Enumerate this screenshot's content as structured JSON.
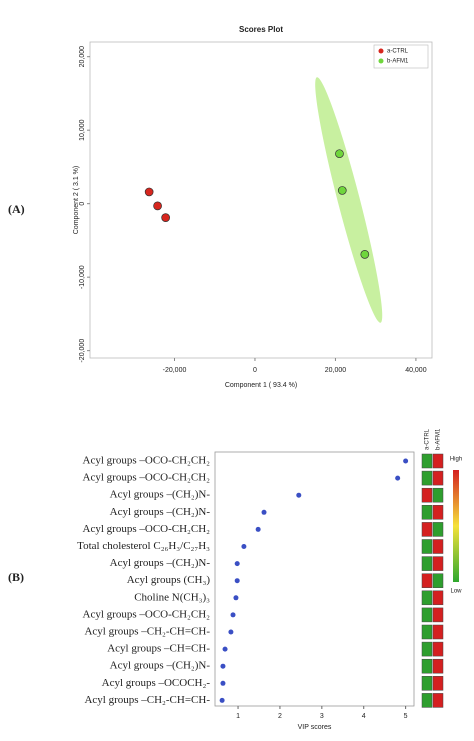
{
  "chart_data": [
    {
      "type": "scatter",
      "panel_label": "(A)",
      "title": "Scores Plot",
      "x_label": "Component 1 ( 93.4 %)",
      "y_label": "Component 2 ( 3.1 %)",
      "xlim": [
        -41000,
        44000
      ],
      "ylim": [
        -21000,
        22000
      ],
      "xticks": [
        {
          "value": -20000,
          "label": "-20,000"
        },
        0,
        {
          "value": 20000,
          "label": "20,000"
        },
        {
          "value": 40000,
          "label": "40,000"
        }
      ],
      "yticks": [
        {
          "value": -20000,
          "label": "-20,000"
        },
        {
          "value": -10000,
          "label": "-10,000"
        },
        0,
        {
          "value": 10000,
          "label": "10,000"
        },
        {
          "value": 20000,
          "label": "20,000"
        }
      ],
      "legend": "top-right",
      "series": [
        {
          "name": "a-CTRL",
          "color": "#d7261e",
          "x": [
            -26300,
            -24200,
            -22200
          ],
          "values": [
            1600,
            -300,
            -1900
          ]
        },
        {
          "name": "b-AFM1",
          "color": "#6fd63c",
          "x": [
            21000,
            21700,
            27300
          ],
          "values": [
            6800,
            1800,
            -6900
          ],
          "ellipse_axis": [
            [
              15400,
              17200
            ],
            [
              31200,
              -16200
            ]
          ],
          "ellipse_color": "#c8f0a0"
        }
      ]
    },
    {
      "type": "dot",
      "panel_label": "(B)",
      "x_label": "VIP scores",
      "xlim": [
        0.45,
        5.2
      ],
      "xticks": [
        1,
        2,
        3,
        4,
        5
      ],
      "color": "#3a4fc4",
      "categories": [
        "Acyl groups –OCO-CH₂CH₂",
        "Acyl groups –OCO-CH₂CH₂",
        "Acyl groups –(CH₂)N-",
        "Acyl groups –(CH₂)N-",
        "Acyl groups –OCO-CH₂CH₂",
        "Total cholesterol C₂₆H₃/C₂₇H₃",
        "Acyl groups –(CH₂)N-",
        "Acyl groups (CH₃)",
        "Choline N(CH₃)₃",
        "Acyl groups –OCO-CH₂CH₂",
        "Acyl groups –CH₂-CH=CH-",
        "Acyl groups –CH=CH-",
        "Acyl groups –(CH₂)N-",
        "Acyl groups –OCOCH₂-",
        "Acyl groups –CH₂-CH=CH-"
      ],
      "values": [
        5.0,
        4.81,
        2.45,
        1.62,
        1.48,
        1.14,
        0.98,
        0.98,
        0.95,
        0.88,
        0.83,
        0.69,
        0.64,
        0.64,
        0.62
      ],
      "heatmap_columns": [
        "a-CTRL",
        "b-AFM1"
      ],
      "heatmap_colors": [
        [
          "#2e9e2e",
          "#d42020"
        ],
        [
          "#2e9e2e",
          "#d42020"
        ],
        [
          "#d42020",
          "#2e9e2e"
        ],
        [
          "#2e9e2e",
          "#d42020"
        ],
        [
          "#d42020",
          "#2e9e2e"
        ],
        [
          "#2e9e2e",
          "#d42020"
        ],
        [
          "#2e9e2e",
          "#d42020"
        ],
        [
          "#d42020",
          "#2e9e2e"
        ],
        [
          "#2e9e2e",
          "#d42020"
        ],
        [
          "#2e9e2e",
          "#d42020"
        ],
        [
          "#2e9e2e",
          "#d42020"
        ],
        [
          "#2e9e2e",
          "#d42020"
        ],
        [
          "#2e9e2e",
          "#d42020"
        ],
        [
          "#2e9e2e",
          "#d42020"
        ],
        [
          "#2e9e2e",
          "#d42020"
        ]
      ],
      "colorbar_labels": [
        "High",
        "Low"
      ]
    }
  ]
}
